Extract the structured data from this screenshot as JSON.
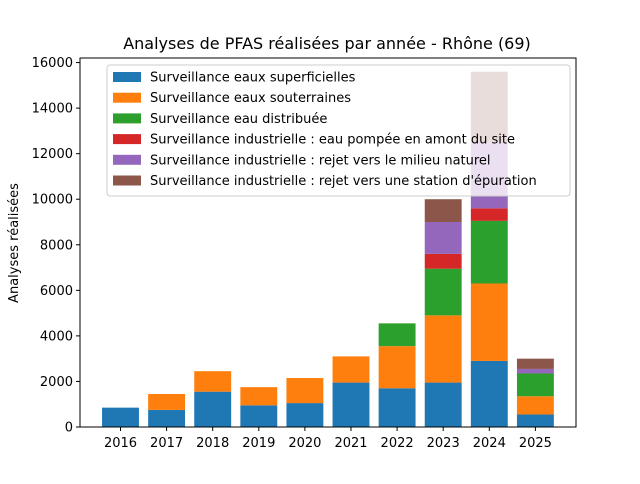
{
  "chart_data": {
    "type": "bar",
    "stacked": true,
    "title": "Analyses de PFAS réalisées par année - Rhône (69)",
    "xlabel": "",
    "ylabel": "Analyses réalisées",
    "ylim": [
      0,
      16200
    ],
    "yticks": [
      0,
      2000,
      4000,
      6000,
      8000,
      10000,
      12000,
      14000,
      16000
    ],
    "categories": [
      "2016",
      "2017",
      "2018",
      "2019",
      "2020",
      "2021",
      "2022",
      "2023",
      "2024",
      "2025"
    ],
    "grid": false,
    "legend_position": "top-left",
    "series": [
      {
        "name": "Surveillance eaux superficielles",
        "color": "#1f77b4",
        "values": [
          850,
          750,
          1550,
          950,
          1050,
          1950,
          1700,
          1950,
          2900,
          550
        ]
      },
      {
        "name": "Surveillance eaux souterraines",
        "color": "#ff7f0e",
        "values": [
          0,
          700,
          900,
          800,
          1100,
          1150,
          1850,
          2950,
          3400,
          800
        ]
      },
      {
        "name": "Surveillance eau distribuée",
        "color": "#2ca02c",
        "values": [
          0,
          0,
          0,
          0,
          0,
          0,
          1000,
          2050,
          2750,
          1000
        ]
      },
      {
        "name": "Surveillance industrielle : eau pompée en amont du site",
        "color": "#d62728",
        "values": [
          0,
          0,
          0,
          0,
          0,
          0,
          0,
          650,
          550,
          0
        ]
      },
      {
        "name": "Surveillance industrielle : rejet vers le milieu naturel",
        "color": "#9467bd",
        "values": [
          0,
          0,
          0,
          0,
          0,
          0,
          0,
          1400,
          2900,
          200
        ]
      },
      {
        "name": "Surveillance industrielle : rejet vers une station d'épuration",
        "color": "#8c564b",
        "values": [
          0,
          0,
          0,
          0,
          0,
          0,
          0,
          1000,
          3100,
          450
        ]
      }
    ]
  }
}
